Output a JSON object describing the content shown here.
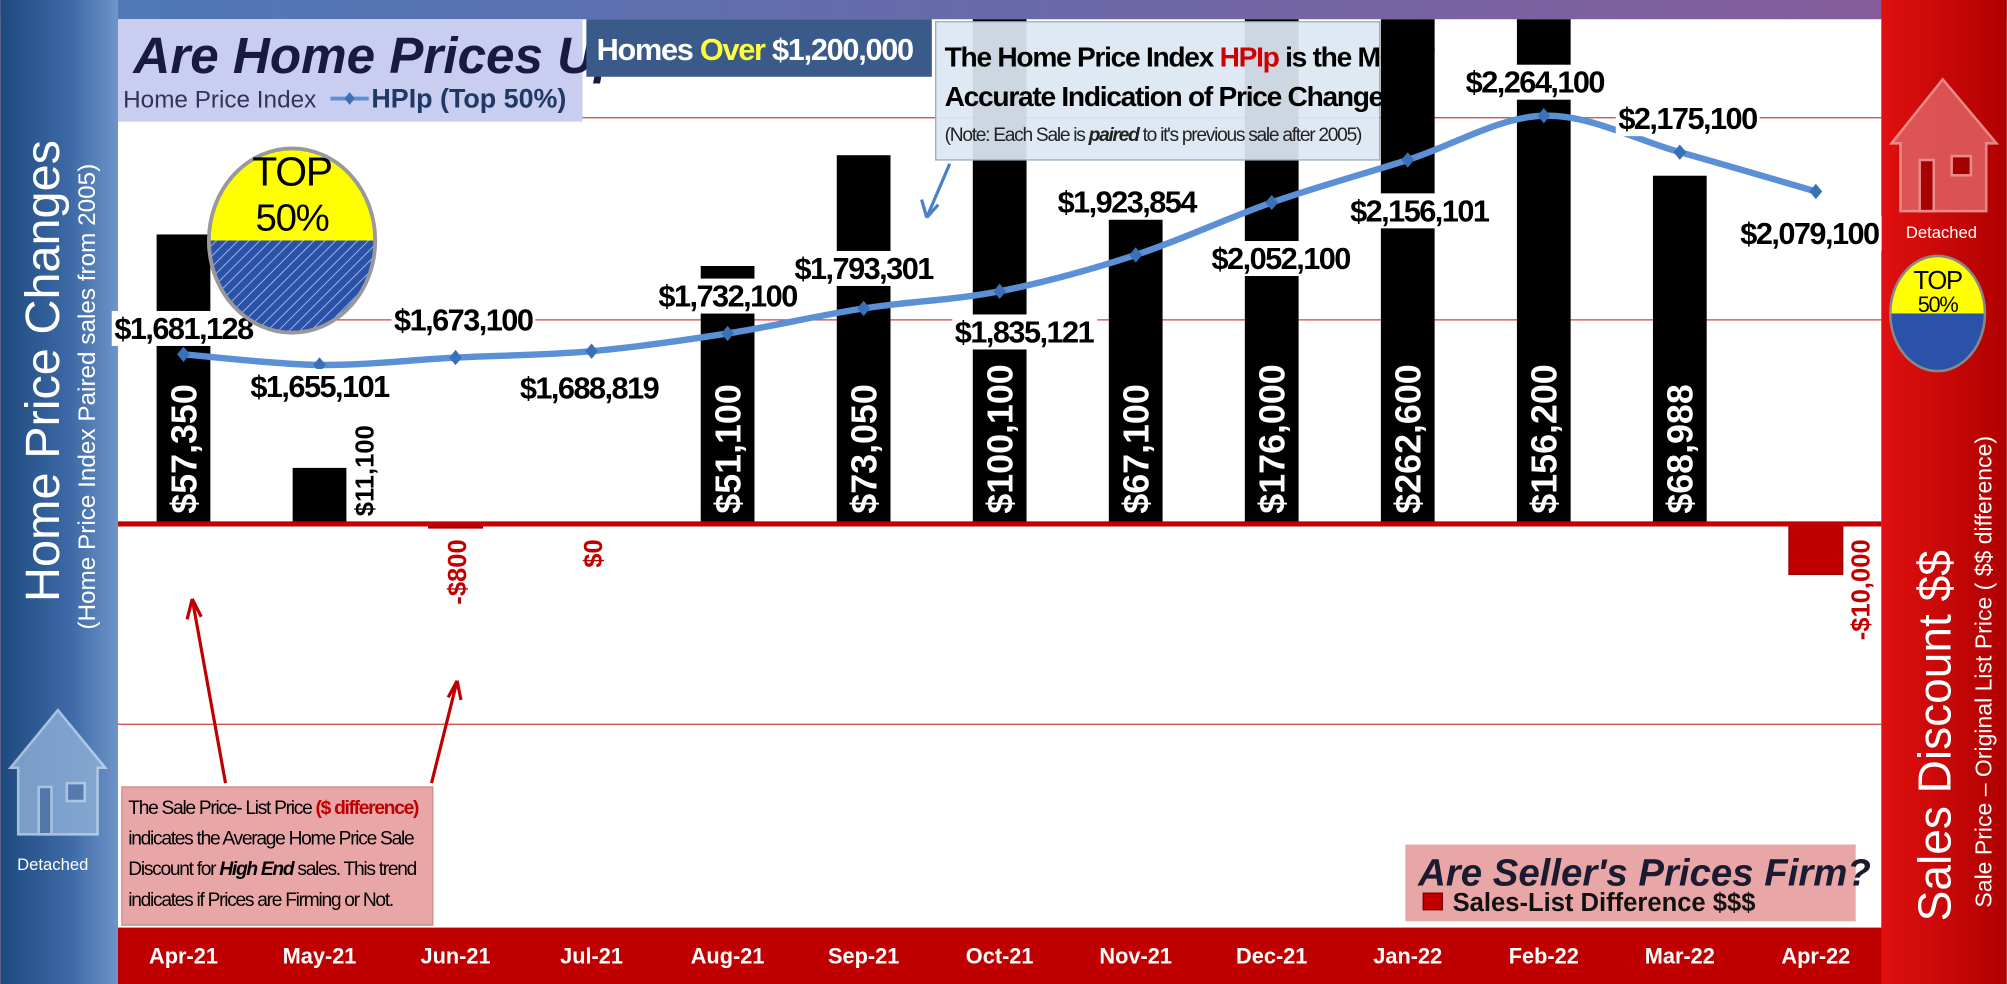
{
  "chart_data": {
    "type": "bar",
    "title": "Are Home Prices Up?",
    "legend_title": "Home Price Index",
    "subtitle": [
      "Homes",
      "Over",
      "$1,200,000"
    ],
    "y_axis_label": "Home Price Changes",
    "y_axis_sublabel": "(Home Price Index Paired sales from 2005)",
    "y2_axis_label": "Sales Discount $$",
    "y2_axis_sublabel": "Sale Price – Original List Price ( $$ difference)",
    "legend2_title": "Are Seller's Prices Firm?",
    "annotations": [
      {
        "lines": [
          [
            "The Home Price Index",
            "HPIp",
            "is the MOST"
          ],
          [
            "Accurate Indication of Price Changes."
          ],
          [
            "(Note: Each Sale is",
            "paired",
            "to it's previous sale after 2005)"
          ]
        ]
      },
      {
        "lines": [
          [
            "The  Sale Price- List Price",
            "($ difference)"
          ],
          [
            "indicates the Average Home Price Sale"
          ],
          [
            "Discount for",
            "High End",
            "sales. This trend"
          ],
          [
            "indicates if Prices are Firming or Not."
          ]
        ]
      }
    ],
    "badges": [
      {
        "top": "TOP",
        "pct": "50%"
      },
      {
        "top": "TOP",
        "pct": "50%"
      }
    ],
    "house_labels": [
      "Detached",
      "Detached"
    ],
    "categories": [
      "Apr-21",
      "May-21",
      "Jun-21",
      "Jul-21",
      "Aug-21",
      "Sep-21",
      "Oct-21",
      "Nov-21",
      "Dec-21",
      "Jan-22",
      "Feb-22",
      "Mar-22",
      "Apr-22"
    ],
    "ylim": [
      280000,
      2500000
    ],
    "y2lim": [
      -80000,
      100000
    ],
    "series": [
      {
        "name": "Sales-List Difference $$$",
        "type": "bar",
        "axis": "y2",
        "color": "#000000",
        "negative_color": "#c00000",
        "values": [
          57350,
          11100,
          -800,
          0,
          51100,
          73050,
          100100,
          67100,
          176000,
          262600,
          156200,
          68988,
          -10000
        ],
        "value_labels": [
          "$57,350",
          "$11,100",
          "-$800",
          "$0",
          "$51,100",
          "$73,050",
          "$100,100",
          "$67,100",
          "$176,000",
          "$262,600",
          "$156,200",
          "$68,988",
          "-$10,000"
        ]
      },
      {
        "name": "HPIp (Top 50%)",
        "type": "line",
        "color": "#5b8fd6",
        "values": [
          1681128,
          1655101,
          1673100,
          1688819,
          1732100,
          1793301,
          1835121,
          1923854,
          2052100,
          2156101,
          2264100,
          2175100,
          2079100
        ],
        "value_labels": [
          "$1,681,128",
          "$1,655,101",
          "$1,673,100",
          "$1,688,819",
          "$1,732,100",
          "$1,793,301",
          "$1,835,121",
          "$1,923,854",
          "$2,052,100",
          "$2,156,101",
          "$2,264,100",
          "$2,175,100",
          "$2,079,100"
        ]
      }
    ]
  }
}
